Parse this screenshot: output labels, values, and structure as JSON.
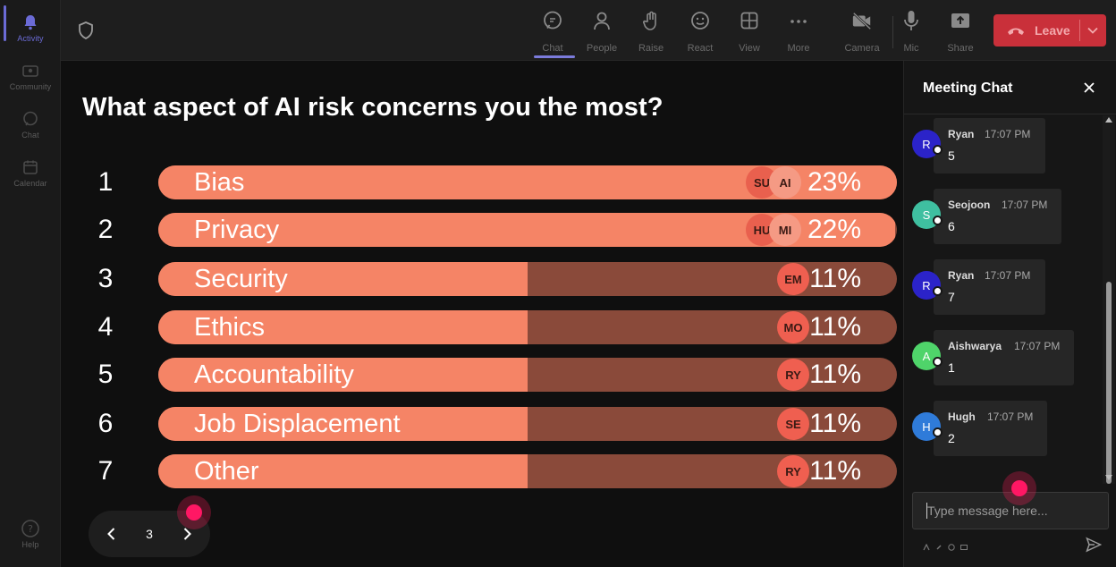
{
  "rail": {
    "items": [
      {
        "label": "Activity",
        "icon": "bell-icon"
      },
      {
        "label": "Community",
        "icon": "community-icon"
      },
      {
        "label": "Chat",
        "icon": "chat-icon"
      },
      {
        "label": "Calendar",
        "icon": "calendar-icon"
      }
    ],
    "help": {
      "label": "Help",
      "icon": "help-icon"
    }
  },
  "topbar": {
    "items": [
      {
        "label": "Chat",
        "icon": "chat-icon"
      },
      {
        "label": "People",
        "icon": "people-icon"
      },
      {
        "label": "Raise",
        "icon": "raise-hand-icon"
      },
      {
        "label": "React",
        "icon": "react-icon"
      },
      {
        "label": "View",
        "icon": "view-grid-icon"
      },
      {
        "label": "More",
        "icon": "more-icon"
      },
      {
        "label": "Camera",
        "icon": "camera-off-icon"
      },
      {
        "label": "Mic",
        "icon": "mic-icon"
      },
      {
        "label": "Share",
        "icon": "share-icon"
      }
    ],
    "leave_label": "Leave"
  },
  "poll": {
    "title": "What aspect of AI risk concerns you the most?",
    "options": [
      {
        "num": "1",
        "label": "Bias",
        "percent": "23%",
        "fill": 1.0,
        "avatars": [
          "SU",
          "AI"
        ]
      },
      {
        "num": "2",
        "label": "Privacy",
        "percent": "22%",
        "fill": 0.998,
        "avatars": [
          "HU",
          "MI"
        ]
      },
      {
        "num": "3",
        "label": "Security",
        "percent": "11%",
        "fill": 0.5,
        "avatars": [
          "EM"
        ]
      },
      {
        "num": "4",
        "label": "Ethics",
        "percent": "11%",
        "fill": 0.5,
        "avatars": [
          "MO"
        ]
      },
      {
        "num": "5",
        "label": "Accountability",
        "percent": "11%",
        "fill": 0.5,
        "avatars": [
          "RY"
        ]
      },
      {
        "num": "6",
        "label": "Job Displacement",
        "percent": "11%",
        "fill": 0.5,
        "avatars": [
          "SE"
        ]
      },
      {
        "num": "7",
        "label": "Other",
        "percent": "11%",
        "fill": 0.5,
        "avatars": [
          "RY"
        ]
      }
    ]
  },
  "pager": {
    "page": "3"
  },
  "chat": {
    "title": "Meeting Chat",
    "messages": [
      {
        "initial": "R",
        "name": "Ryan",
        "time": "17:07 PM",
        "body": "5",
        "color": "#2b23c9"
      },
      {
        "initial": "S",
        "name": "Seojoon",
        "time": "17:07 PM",
        "body": "6",
        "color": "#3fbfa0"
      },
      {
        "initial": "R",
        "name": "Ryan",
        "time": "17:07 PM",
        "body": "7",
        "color": "#2b23c9"
      },
      {
        "initial": "A",
        "name": "Aishwarya",
        "time": "17:07 PM",
        "body": "1",
        "color": "#4fd46a"
      },
      {
        "initial": "H",
        "name": "Hugh",
        "time": "17:07 PM",
        "body": "2",
        "color": "#2f7bd9"
      }
    ],
    "input_placeholder": "Type message here..."
  },
  "colors": {
    "bar_fill": "#f58466",
    "bar_track": "#8a4a3a",
    "leave": "#c9303a",
    "accent": "#7b7bdb",
    "cursor": "#ff1764"
  }
}
